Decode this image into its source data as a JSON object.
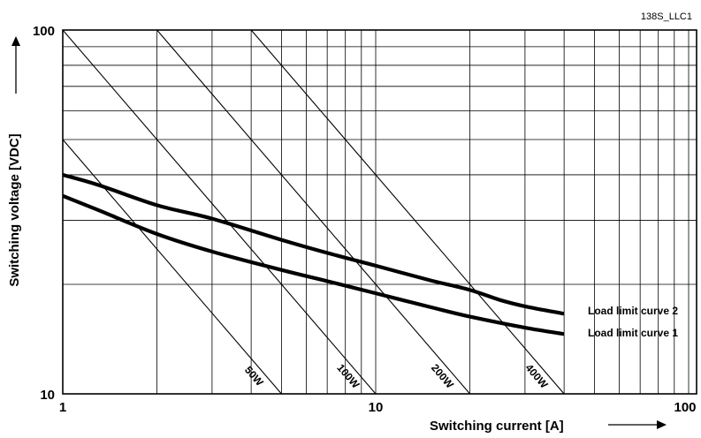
{
  "figure_code": "138S_LLC1",
  "colors": {
    "ink": "#000000",
    "grid": "#000000",
    "background": "#ffffff"
  },
  "chart_data": {
    "type": "line",
    "title": "",
    "xlabel": "Switching current  [A]",
    "ylabel": "Switching voltage [VDC]",
    "xscale": "log",
    "yscale": "log",
    "xlim": [
      1,
      100
    ],
    "ylim": [
      10,
      100
    ],
    "grid": true,
    "x_ticks": [
      1,
      10,
      100
    ],
    "x_tick_labels": [
      "1",
      "10",
      "100"
    ],
    "y_ticks": [
      10,
      100
    ],
    "y_tick_labels": [
      "10",
      "100"
    ],
    "x_gridlines": [
      1,
      2,
      3,
      4,
      5,
      6,
      7,
      8,
      9,
      10,
      20,
      30,
      40,
      50,
      60,
      70,
      80,
      90,
      100
    ],
    "y_gridlines": [
      10,
      20,
      30,
      40,
      50,
      60,
      70,
      80,
      90,
      100
    ],
    "series": [
      {
        "name": "Load limit curve 2",
        "x": [
          1,
          1.3,
          2,
          3,
          5,
          7,
          10,
          15,
          20,
          25,
          30,
          40
        ],
        "y": [
          40,
          37.5,
          33,
          30.3,
          26.5,
          24.4,
          22.5,
          20.5,
          19.3,
          18.1,
          17.4,
          16.6
        ]
      },
      {
        "name": "Load limit curve 1",
        "x": [
          1,
          1.3,
          2,
          3,
          5,
          7,
          10,
          15,
          20,
          30,
          40
        ],
        "y": [
          35,
          32,
          27.5,
          24.6,
          21.9,
          20.4,
          18.9,
          17.3,
          16.3,
          15.2,
          14.6
        ]
      }
    ],
    "power_lines": [
      {
        "name": "50W",
        "label": "50W",
        "watts": 50
      },
      {
        "name": "100W",
        "label": "100W",
        "watts": 100
      },
      {
        "name": "200W",
        "label": "200W",
        "watts": 200
      },
      {
        "name": "400W",
        "label": "400W",
        "watts": 400
      }
    ]
  }
}
